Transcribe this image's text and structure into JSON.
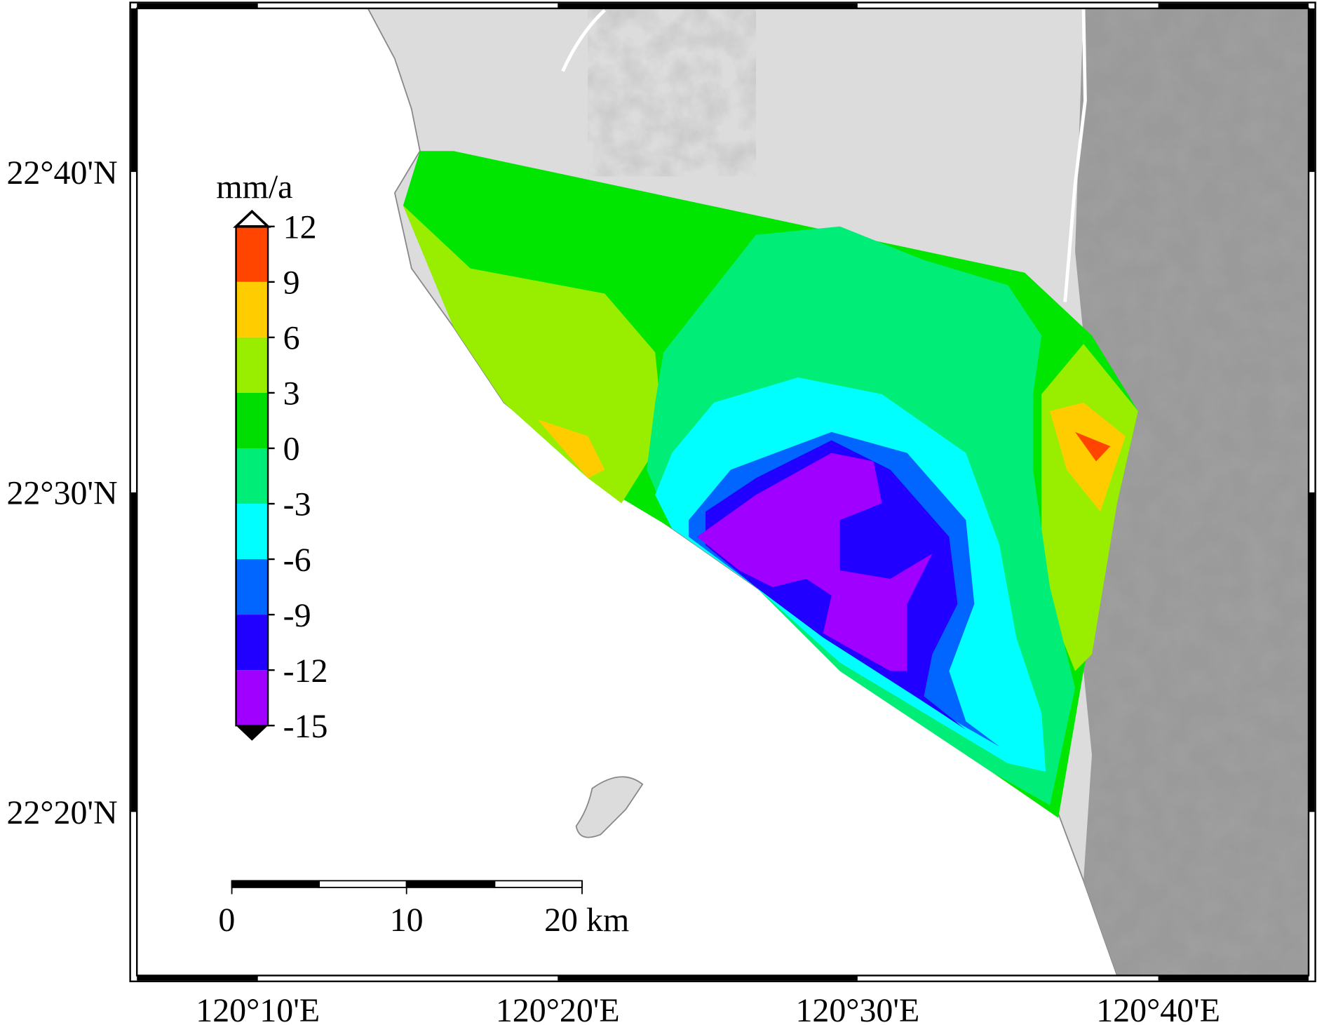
{
  "map": {
    "latitude_labels": [
      "22°40'N",
      "22°30'N",
      "22°20'N"
    ],
    "longitude_labels": [
      "120°10'E",
      "120°20'E",
      "120°30'E",
      "120°40'E"
    ],
    "colorbar": {
      "title": "mm/a",
      "ticks": [
        12,
        9,
        6,
        3,
        0,
        -3,
        -6,
        -9,
        -12,
        -15
      ],
      "colors": [
        "#ff4500",
        "#ffcc00",
        "#99ee00",
        "#00dd00",
        "#00ee77",
        "#00ffff",
        "#0066ff",
        "#2200ff",
        "#a000ff"
      ]
    },
    "scale_bar": {
      "labels": [
        "0",
        "10",
        "20 km"
      ]
    }
  }
}
